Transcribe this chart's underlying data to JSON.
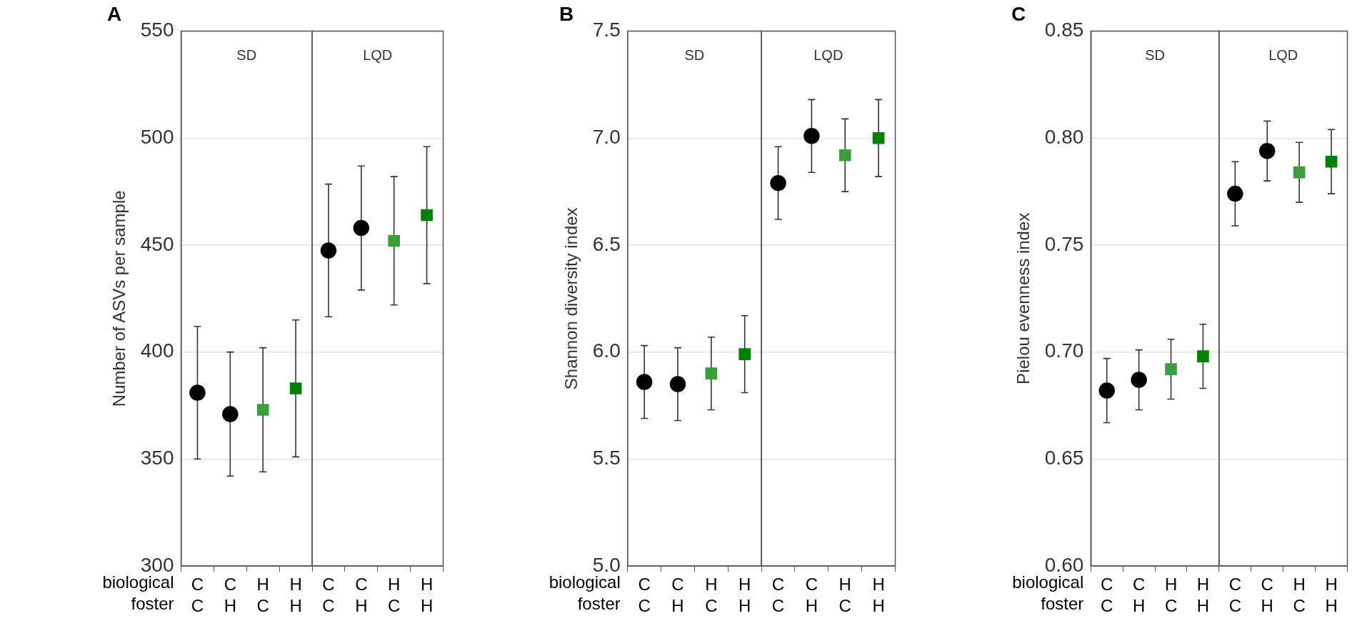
{
  "chart_data": [
    {
      "type": "scatter",
      "title": "A",
      "ylabel": "Number of ASVs per sample",
      "categories": [
        "C\nC",
        "C\nH",
        "H\nC",
        "H\nH",
        "C\nC",
        "C\nH",
        "H\nC",
        "H\nH"
      ],
      "series": [
        {
          "color": "#000000",
          "marker": "circle",
          "values": [
            381,
            null,
            null,
            null,
            447.5,
            null,
            null,
            null
          ],
          "errors": [
            31,
            null,
            null,
            null,
            31,
            null,
            null,
            null
          ]
        },
        {
          "color": "#000000",
          "marker": "circle",
          "values": [
            null,
            371,
            null,
            null,
            null,
            458,
            null,
            null
          ],
          "errors": [
            null,
            29,
            null,
            null,
            null,
            29,
            null,
            null
          ]
        },
        {
          "color": "#3a9e3a",
          "marker": "square",
          "values": [
            null,
            null,
            373,
            null,
            null,
            null,
            452,
            null
          ],
          "errors": [
            null,
            null,
            29,
            null,
            null,
            null,
            30,
            null
          ]
        },
        {
          "color": "#008000",
          "marker": "square",
          "values": [
            null,
            null,
            null,
            383,
            null,
            null,
            null,
            464
          ],
          "errors": [
            null,
            null,
            null,
            32,
            null,
            null,
            null,
            32
          ]
        }
      ],
      "ylim": [
        300,
        550
      ],
      "yticks": [
        300,
        350,
        400,
        450,
        500,
        550
      ],
      "grid": "y",
      "annotations": [
        "SD",
        "LQD",
        "biological",
        "foster"
      ]
    },
    {
      "type": "scatter",
      "title": "B",
      "ylabel": "Shannon diversity index",
      "categories": [
        "C\nC",
        "C\nH",
        "H\nC",
        "H\nH",
        "C\nC",
        "C\nH",
        "H\nC",
        "H\nH"
      ],
      "series": [
        {
          "color": "#000000",
          "marker": "circle",
          "values": [
            5.86,
            null,
            null,
            null,
            6.79,
            null,
            null,
            null
          ],
          "errors": [
            0.17,
            null,
            null,
            null,
            0.17,
            null,
            null,
            null
          ]
        },
        {
          "color": "#000000",
          "marker": "circle",
          "values": [
            null,
            5.85,
            null,
            null,
            null,
            7.01,
            null,
            null
          ],
          "errors": [
            null,
            0.17,
            null,
            null,
            null,
            0.17,
            null,
            null
          ]
        },
        {
          "color": "#3a9e3a",
          "marker": "square",
          "values": [
            null,
            null,
            5.9,
            null,
            null,
            null,
            6.92,
            null
          ],
          "errors": [
            null,
            null,
            0.17,
            null,
            null,
            null,
            0.17,
            null
          ]
        },
        {
          "color": "#008000",
          "marker": "square",
          "values": [
            null,
            null,
            null,
            5.99,
            null,
            null,
            null,
            7.0
          ],
          "errors": [
            null,
            null,
            null,
            0.18,
            null,
            null,
            null,
            0.18
          ]
        }
      ],
      "ylim": [
        5,
        7.5
      ],
      "yticks": [
        {
          "value": 5,
          "label": "5.0"
        },
        5.5,
        {
          "value": 6,
          "label": "6.0"
        },
        6.5,
        {
          "value": 7,
          "label": "7.0"
        },
        7.5
      ],
      "grid": "y",
      "annotations": [
        "SD",
        "LQD",
        "biological",
        "foster"
      ]
    },
    {
      "type": "scatter",
      "title": "C",
      "ylabel": "Pielou evenness index",
      "categories": [
        "C\nC",
        "C\nH",
        "H\nC",
        "H\nH",
        "C\nC",
        "C\nH",
        "H\nC",
        "H\nH"
      ],
      "series": [
        {
          "color": "#000000",
          "marker": "circle",
          "values": [
            0.682,
            null,
            null,
            null,
            0.774,
            null,
            null,
            null
          ],
          "errors": [
            0.015,
            null,
            null,
            null,
            0.015,
            null,
            null,
            null
          ]
        },
        {
          "color": "#000000",
          "marker": "circle",
          "values": [
            null,
            0.687,
            null,
            null,
            null,
            0.794,
            null,
            null
          ],
          "errors": [
            null,
            0.014,
            null,
            null,
            null,
            0.014,
            null,
            null
          ]
        },
        {
          "color": "#3a9e3a",
          "marker": "square",
          "values": [
            null,
            null,
            0.692,
            null,
            null,
            null,
            0.784,
            null
          ],
          "errors": [
            null,
            null,
            0.014,
            null,
            null,
            null,
            0.014,
            null
          ]
        },
        {
          "color": "#008000",
          "marker": "square",
          "values": [
            null,
            null,
            null,
            0.698,
            null,
            null,
            null,
            0.789
          ],
          "errors": [
            null,
            null,
            null,
            0.015,
            null,
            null,
            null,
            0.015
          ]
        }
      ],
      "ylim": [
        0.6,
        0.85
      ],
      "yticks": [
        {
          "value": 0.6,
          "label": "0.60"
        },
        0.65,
        {
          "value": 0.7,
          "label": "0.70"
        },
        0.75,
        {
          "value": 0.8,
          "label": "0.80"
        },
        0.85
      ],
      "grid": "y",
      "annotations": [
        "SD",
        "LQD",
        "biological",
        "foster"
      ]
    }
  ]
}
